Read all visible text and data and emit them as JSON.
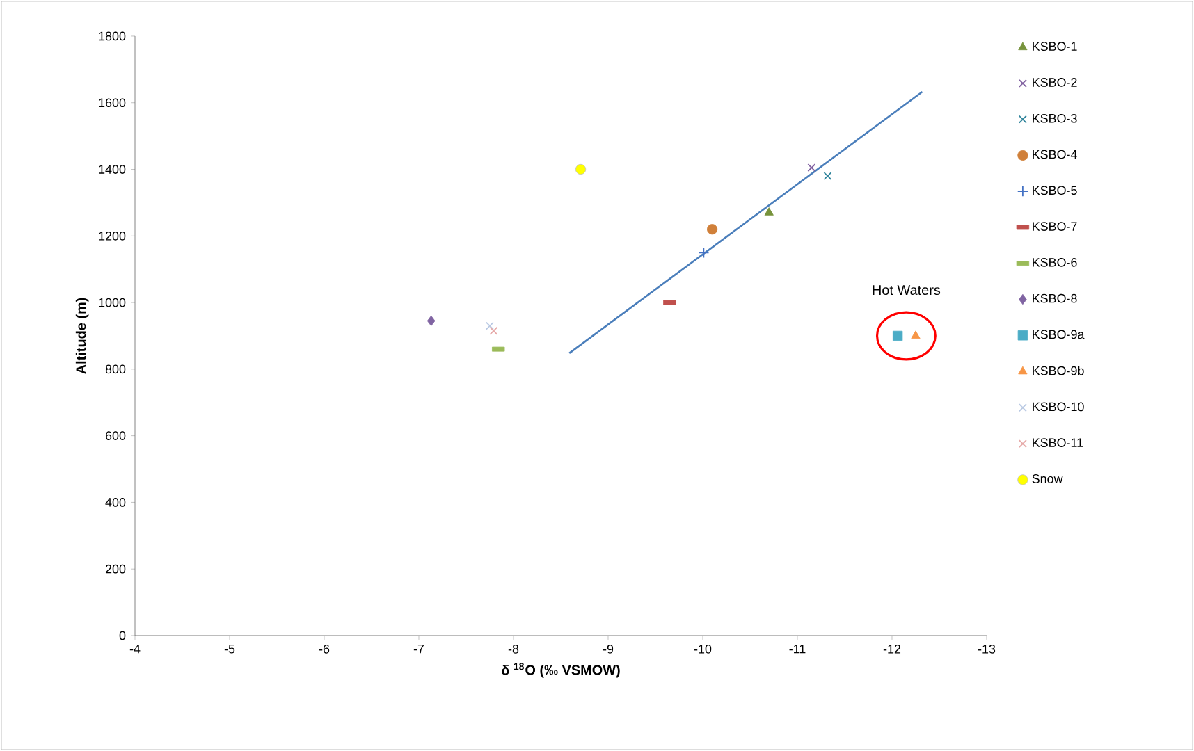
{
  "chart_data": {
    "type": "scatter",
    "xlabel": "δ $^{18}$O (‰ VSMOW)",
    "ylabel": "Altitude (m)",
    "xlim": [
      -4,
      -13
    ],
    "xticks": [
      -4,
      -5,
      -6,
      -7,
      -8,
      -9,
      -10,
      -11,
      -12,
      -13
    ],
    "ylim": [
      0,
      1800
    ],
    "yticks": [
      0,
      200,
      400,
      600,
      800,
      1000,
      1200,
      1400,
      1600,
      1800
    ],
    "grid": false,
    "legend": "right",
    "annotations": [
      {
        "text": "Hot Waters",
        "x": -12.15,
        "y": 900
      }
    ],
    "series": [
      {
        "name": "KSBO-1",
        "color": "#77933c",
        "marker": "triangle",
        "x": [
          -10.7
        ],
        "values": [
          1270
        ]
      },
      {
        "name": "KSBO-2",
        "color": "#7f5f9f",
        "marker": "cross",
        "x": [
          -11.15
        ],
        "values": [
          1405
        ]
      },
      {
        "name": "KSBO-3",
        "color": "#31859c",
        "marker": "cross",
        "x": [
          -11.32
        ],
        "values": [
          1380
        ]
      },
      {
        "name": "KSBO-4",
        "color": "#d0803a",
        "marker": "circle",
        "x": [
          -10.1
        ],
        "values": [
          1220
        ]
      },
      {
        "name": "KSBO-5",
        "color": "#4472c4",
        "marker": "plus",
        "x": [
          -10.01
        ],
        "values": [
          1150
        ]
      },
      {
        "name": "KSBO-7",
        "color": "#c0504d",
        "marker": "square",
        "x": [
          -9.65
        ],
        "values": [
          1000
        ]
      },
      {
        "name": "KSBO-6",
        "color": "#9bbb59",
        "marker": "square",
        "x": [
          -7.84
        ],
        "values": [
          860
        ]
      },
      {
        "name": "KSBO-8",
        "color": "#8064a2",
        "marker": "diamond",
        "x": [
          -7.13
        ],
        "values": [
          945
        ]
      },
      {
        "name": "KSBO-9a",
        "color": "#4bacc6",
        "marker": "square",
        "x": [
          -12.06
        ],
        "values": [
          900
        ]
      },
      {
        "name": "KSBO-9b",
        "color": "#f79646",
        "marker": "triangle",
        "x": [
          -12.25
        ],
        "values": [
          900
        ]
      },
      {
        "name": "KSBO-10",
        "color": "#b9c9e3",
        "marker": "cross",
        "x": [
          -7.75
        ],
        "values": [
          930
        ]
      },
      {
        "name": "KSBO-11",
        "color": "#e6a9a8",
        "marker": "cross",
        "x": [
          -7.79
        ],
        "values": [
          915
        ]
      },
      {
        "name": "Snow",
        "color": "#ffff00",
        "marker": "circle",
        "x": [
          -8.71
        ],
        "values": [
          1400
        ]
      },
      {
        "type": "line",
        "color": "#4a7ebb",
        "marker": "none",
        "x": [
          -8.59,
          -12.32
        ],
        "values": [
          848,
          1633
        ]
      }
    ]
  }
}
